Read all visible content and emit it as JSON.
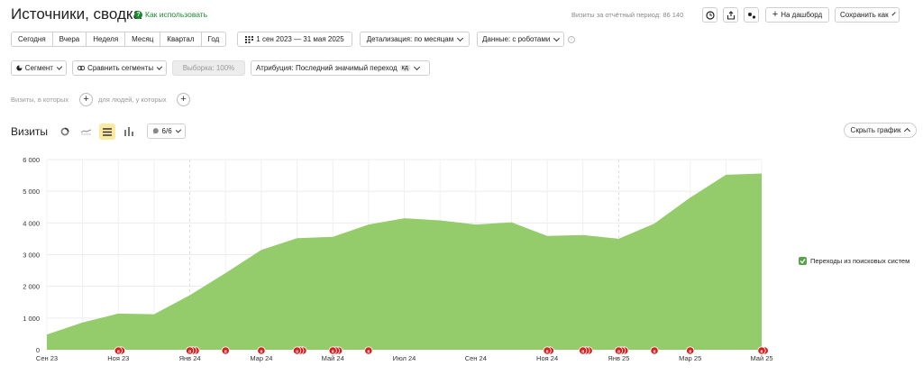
{
  "header": {
    "title": "Источники, сводка",
    "how_to_use": "Как использовать",
    "visits_total_label": "Визиты за отчётный период: 86 140",
    "add_dashboard": "На дашборд",
    "save_as": "Сохранить как"
  },
  "period": {
    "buttons": [
      "Сегодня",
      "Вчера",
      "Неделя",
      "Месяц",
      "Квартал",
      "Год"
    ],
    "date_range": "1 сен 2023 — 31 мая 2025",
    "detail": "Детализация: по месяцам",
    "data": "Данные: с роботами"
  },
  "filters": {
    "segment": "Сегмент",
    "compare": "Сравнить сегменты",
    "sample": "Выборка: 100%",
    "attribution": "Атрибуция: Последний значимый переход",
    "attribution_badge": "кд",
    "visits_where": "Визиты, в которых",
    "people_where": "для людей, у которых"
  },
  "chart_header": {
    "title": "Визиты",
    "series_count": "6/6",
    "hide_chart": "Скрыть график"
  },
  "colors": {
    "area_fill": "#94cb6b",
    "accent_green": "#1b8a2e",
    "marker_red": "#d62020"
  },
  "chart_data": {
    "type": "area",
    "x": [
      "Сен 23",
      "Окт 23",
      "Ноя 23",
      "Дек 23",
      "Янв 24",
      "Фев 24",
      "Мар 24",
      "Апр 24",
      "Май 24",
      "Июн 24",
      "Июл 24",
      "Авг 24",
      "Сен 24",
      "Окт 24",
      "Ноя 24",
      "Дек 24",
      "Янв 25",
      "Фев 25",
      "Мар 25",
      "Апр 25",
      "Май 25"
    ],
    "x_tick_labels": [
      "Сен 23",
      "",
      "Ноя 23",
      "",
      "Янв 24",
      "",
      "Мар 24",
      "",
      "Май 24",
      "",
      "Июл 24",
      "",
      "Сен 24",
      "",
      "Ноя 24",
      "",
      "Янв 25",
      "",
      "Мар 25",
      "",
      "Май 25"
    ],
    "series": [
      {
        "name": "Переходы из поисковых систем",
        "values": [
          480,
          860,
          1140,
          1120,
          1720,
          2420,
          3150,
          3520,
          3560,
          3950,
          4150,
          4080,
          3950,
          4020,
          3590,
          3620,
          3500,
          3980,
          4800,
          5520,
          5560
        ]
      }
    ],
    "ylim": [
      0,
      6000
    ],
    "y_ticks": [
      "0",
      "1 000",
      "2 000",
      "3 000",
      "4 000",
      "5 000",
      "6 000"
    ],
    "grid": true,
    "legend_position": "right"
  },
  "markers": [
    {
      "x": 2,
      "count": 2
    },
    {
      "x": 4,
      "count": 3
    },
    {
      "x": 5,
      "count": 1
    },
    {
      "x": 6,
      "count": 1
    },
    {
      "x": 7,
      "count": 3
    },
    {
      "x": 8,
      "count": 3
    },
    {
      "x": 9,
      "count": 1
    },
    {
      "x": 14,
      "count": 2
    },
    {
      "x": 15,
      "count": 3
    },
    {
      "x": 16,
      "count": 3
    },
    {
      "x": 17,
      "count": 1
    },
    {
      "x": 18,
      "count": 1
    },
    {
      "x": 20,
      "count": 2
    }
  ]
}
